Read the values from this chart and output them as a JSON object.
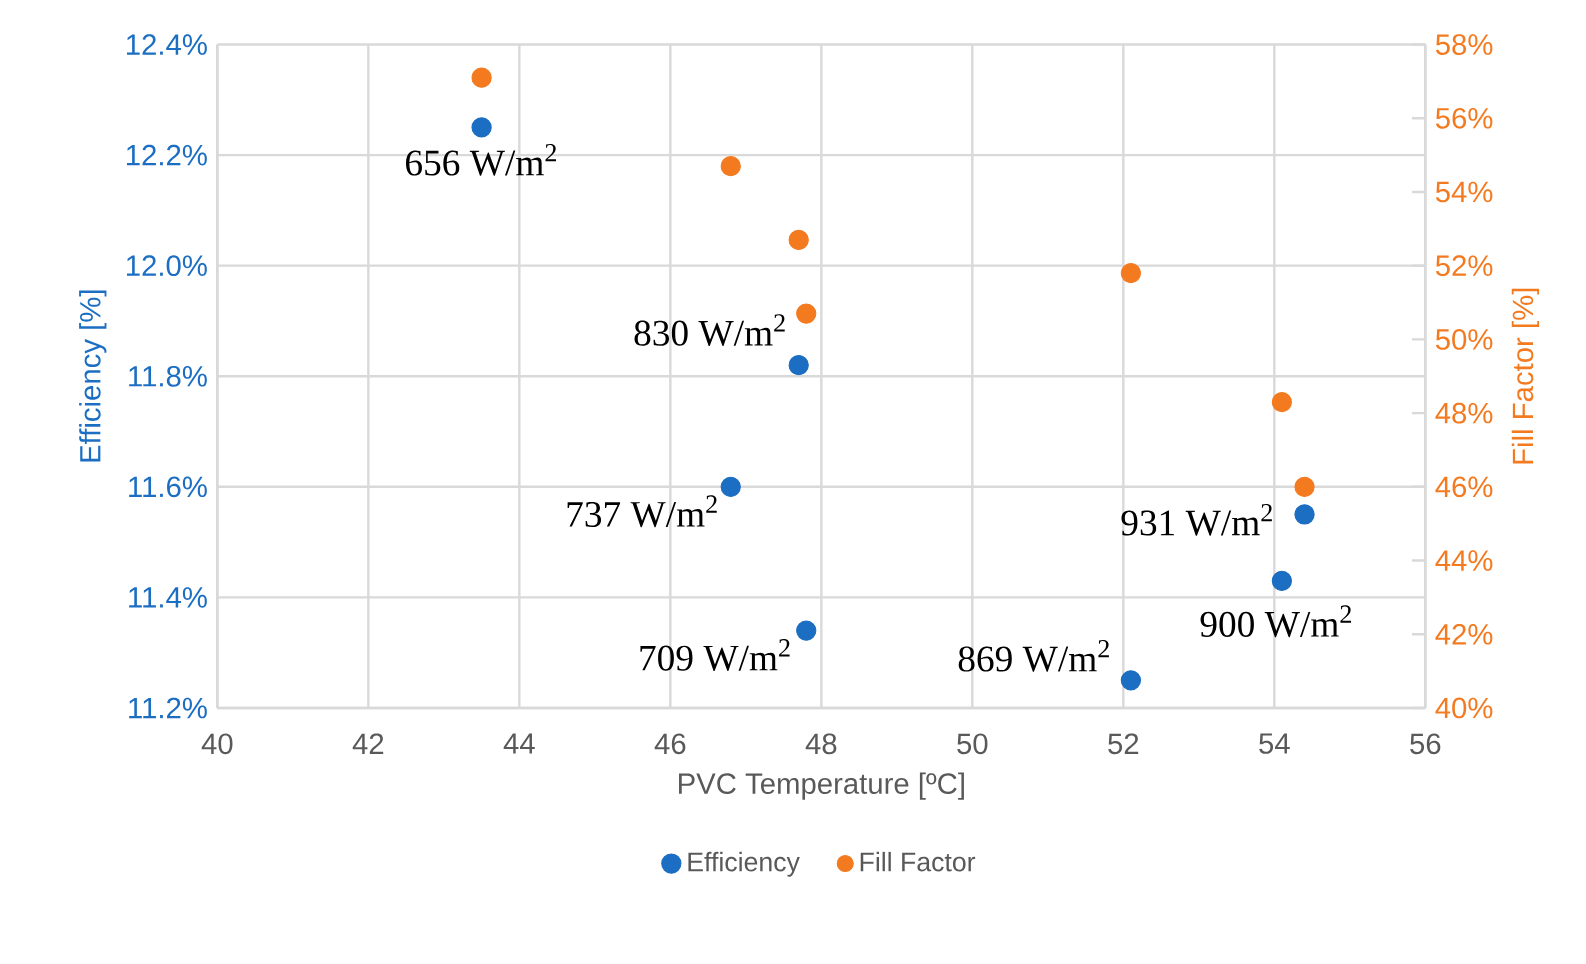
{
  "chart_data": {
    "type": "scatter",
    "xlabel": "PVC Temperature [ºC]",
    "ylabel": "Efficiency [%]",
    "y2label": "Fill Factor [%]",
    "xlim": [
      40,
      56
    ],
    "xticks": [
      40,
      42,
      44,
      46,
      48,
      50,
      52,
      54,
      56
    ],
    "ylim": [
      11.2,
      12.4
    ],
    "yticks": [
      {
        "value": 11.2,
        "label": "11.2%"
      },
      {
        "value": 11.4,
        "label": "11.4%"
      },
      {
        "value": 11.6,
        "label": "11.6%"
      },
      {
        "value": 11.8,
        "label": "11.8%"
      },
      {
        "value": 12.0,
        "label": "12.0%"
      },
      {
        "value": 12.2,
        "label": "12.2%"
      },
      {
        "value": 12.4,
        "label": "12.4%"
      }
    ],
    "y2lim": [
      40,
      58
    ],
    "y2ticks": [
      {
        "value": 40,
        "label": "40%"
      },
      {
        "value": 42,
        "label": "42%"
      },
      {
        "value": 44,
        "label": "44%"
      },
      {
        "value": 46,
        "label": "46%"
      },
      {
        "value": 48,
        "label": "48%"
      },
      {
        "value": 50,
        "label": "50%"
      },
      {
        "value": 52,
        "label": "52%"
      },
      {
        "value": 54,
        "label": "54%"
      },
      {
        "value": 56,
        "label": "56%"
      },
      {
        "value": 58,
        "label": "58%"
      }
    ],
    "grid": true,
    "legend": "bottom",
    "marker": "circle",
    "series": [
      {
        "name": "Efficiency",
        "color": "#1b6ec2",
        "x": [
          43.5,
          46.8,
          47.7,
          47.8,
          52.1,
          54.1,
          54.4
        ],
        "values": [
          12.25,
          11.6,
          11.82,
          11.34,
          11.25,
          11.43,
          11.55
        ]
      },
      {
        "name": "Fill Factor",
        "color": "#f47a20",
        "axis": "y2",
        "x": [
          43.5,
          46.8,
          47.7,
          47.8,
          52.1,
          54.1,
          54.4
        ],
        "values": [
          57.1,
          54.7,
          52.7,
          50.7,
          51.8,
          48.3,
          46.0
        ]
      }
    ],
    "annotations": [
      {
        "text": "656 W/m$^{2}$",
        "x": 43.5,
        "y": 12.25
      },
      {
        "text": "737 W/m$^{2}$",
        "x": 46.8,
        "y": 11.6
      },
      {
        "text": "830 W/m$^{2}$",
        "x": 47.7,
        "y": 11.82
      },
      {
        "text": "709 W/m$^{2}$",
        "x": 47.8,
        "y": 11.34
      },
      {
        "text": "869 W/m$^{2}$",
        "x": 52.1,
        "y": 11.25
      },
      {
        "text": "900 W/m$^{2}$",
        "x": 54.1,
        "y": 11.43
      },
      {
        "text": "931 W/m$^{2}$",
        "x": 54.4,
        "y": 11.55
      }
    ]
  }
}
